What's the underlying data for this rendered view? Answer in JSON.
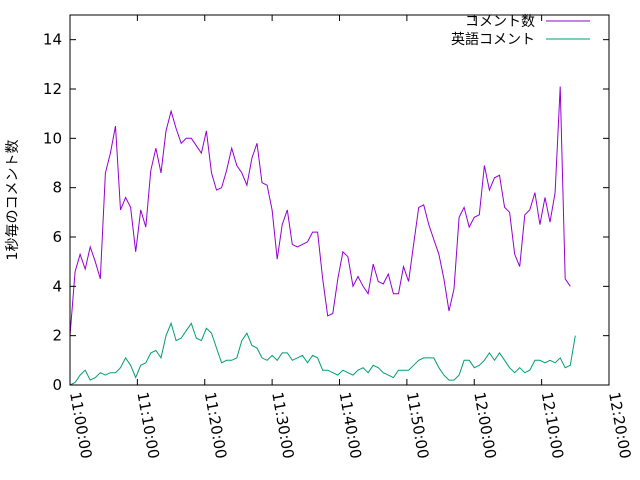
{
  "chart_data": {
    "type": "line",
    "title": "",
    "xlabel": "",
    "ylabel": "1秒毎のコメント数",
    "ylim": [
      0,
      15
    ],
    "yticks": [
      0,
      2,
      4,
      6,
      8,
      10,
      12,
      14
    ],
    "xlim": [
      "11:00:00",
      "12:20:00"
    ],
    "xticks": [
      "11:00:00",
      "11:10:00",
      "11:20:00",
      "11:30:00",
      "11:40:00",
      "11:50:00",
      "12:00:00",
      "12:10:00",
      "12:20:00"
    ],
    "grid": false,
    "legend_position": "top-right",
    "series": [
      {
        "name": "コメント数",
        "color": "#9400d3",
        "points": [
          [
            "11:00:00",
            2.0
          ],
          [
            "11:00:45",
            4.6
          ],
          [
            "11:01:30",
            5.3
          ],
          [
            "11:02:15",
            4.7
          ],
          [
            "11:03:00",
            5.6
          ],
          [
            "11:03:45",
            5.0
          ],
          [
            "11:04:30",
            4.3
          ],
          [
            "11:05:15",
            8.6
          ],
          [
            "11:06:00",
            9.4
          ],
          [
            "11:06:45",
            10.5
          ],
          [
            "11:07:30",
            7.1
          ],
          [
            "11:08:15",
            7.6
          ],
          [
            "11:09:00",
            7.2
          ],
          [
            "11:09:45",
            5.4
          ],
          [
            "11:10:30",
            7.1
          ],
          [
            "11:11:15",
            6.4
          ],
          [
            "11:12:00",
            8.7
          ],
          [
            "11:12:45",
            9.6
          ],
          [
            "11:13:30",
            8.6
          ],
          [
            "11:14:15",
            10.3
          ],
          [
            "11:15:00",
            11.1
          ],
          [
            "11:15:45",
            10.4
          ],
          [
            "11:16:30",
            9.8
          ],
          [
            "11:17:15",
            10.0
          ],
          [
            "11:18:00",
            10.0
          ],
          [
            "11:18:45",
            9.7
          ],
          [
            "11:19:30",
            9.4
          ],
          [
            "11:20:15",
            10.3
          ],
          [
            "11:21:00",
            8.6
          ],
          [
            "11:21:45",
            7.9
          ],
          [
            "11:22:30",
            8.0
          ],
          [
            "11:23:15",
            8.7
          ],
          [
            "11:24:00",
            9.6
          ],
          [
            "11:24:45",
            8.9
          ],
          [
            "11:25:30",
            8.6
          ],
          [
            "11:26:15",
            8.1
          ],
          [
            "11:27:00",
            9.2
          ],
          [
            "11:27:45",
            9.8
          ],
          [
            "11:28:30",
            8.2
          ],
          [
            "11:29:15",
            8.1
          ],
          [
            "11:30:00",
            7.1
          ],
          [
            "11:30:45",
            5.1
          ],
          [
            "11:31:30",
            6.5
          ],
          [
            "11:32:15",
            7.1
          ],
          [
            "11:33:00",
            5.7
          ],
          [
            "11:33:45",
            5.6
          ],
          [
            "11:34:30",
            5.7
          ],
          [
            "11:35:15",
            5.8
          ],
          [
            "11:36:00",
            6.2
          ],
          [
            "11:36:45",
            6.2
          ],
          [
            "11:37:30",
            4.3
          ],
          [
            "11:38:15",
            2.8
          ],
          [
            "11:39:00",
            2.9
          ],
          [
            "11:39:45",
            4.3
          ],
          [
            "11:40:30",
            5.4
          ],
          [
            "11:41:15",
            5.2
          ],
          [
            "11:42:00",
            4.0
          ],
          [
            "11:42:45",
            4.4
          ],
          [
            "11:43:30",
            4.0
          ],
          [
            "11:44:15",
            3.7
          ],
          [
            "11:45:00",
            4.9
          ],
          [
            "11:45:45",
            4.2
          ],
          [
            "11:46:30",
            4.1
          ],
          [
            "11:47:15",
            4.5
          ],
          [
            "11:48:00",
            3.7
          ],
          [
            "11:48:45",
            3.7
          ],
          [
            "11:49:30",
            4.8
          ],
          [
            "11:50:15",
            4.2
          ],
          [
            "11:51:00",
            5.7
          ],
          [
            "11:51:45",
            7.2
          ],
          [
            "11:52:30",
            7.3
          ],
          [
            "11:53:15",
            6.5
          ],
          [
            "11:54:00",
            5.9
          ],
          [
            "11:54:45",
            5.3
          ],
          [
            "11:55:30",
            4.3
          ],
          [
            "11:56:15",
            3.0
          ],
          [
            "11:57:00",
            3.9
          ],
          [
            "11:57:45",
            6.8
          ],
          [
            "11:58:30",
            7.2
          ],
          [
            "11:59:15",
            6.4
          ],
          [
            "12:00:00",
            6.8
          ],
          [
            "12:00:45",
            6.9
          ],
          [
            "12:01:30",
            8.9
          ],
          [
            "12:02:15",
            7.9
          ],
          [
            "12:03:00",
            8.4
          ],
          [
            "12:03:45",
            8.5
          ],
          [
            "12:04:30",
            7.2
          ],
          [
            "12:05:15",
            7.0
          ],
          [
            "12:06:00",
            5.3
          ],
          [
            "12:06:45",
            4.8
          ],
          [
            "12:07:30",
            6.9
          ],
          [
            "12:08:15",
            7.1
          ],
          [
            "12:09:00",
            7.8
          ],
          [
            "12:09:45",
            6.5
          ],
          [
            "12:10:30",
            7.6
          ],
          [
            "12:11:15",
            6.6
          ],
          [
            "12:12:00",
            7.8
          ],
          [
            "12:12:45",
            12.1
          ],
          [
            "12:13:30",
            4.3
          ],
          [
            "12:14:15",
            4.0
          ]
        ]
      },
      {
        "name": "英語コメント",
        "color": "#009e73",
        "points": [
          [
            "11:00:00",
            0.0
          ],
          [
            "11:00:45",
            0.1
          ],
          [
            "11:01:30",
            0.4
          ],
          [
            "11:02:15",
            0.6
          ],
          [
            "11:03:00",
            0.2
          ],
          [
            "11:03:45",
            0.3
          ],
          [
            "11:04:30",
            0.5
          ],
          [
            "11:05:15",
            0.4
          ],
          [
            "11:06:00",
            0.5
          ],
          [
            "11:06:45",
            0.5
          ],
          [
            "11:07:30",
            0.7
          ],
          [
            "11:08:15",
            1.1
          ],
          [
            "11:09:00",
            0.8
          ],
          [
            "11:09:45",
            0.3
          ],
          [
            "11:10:30",
            0.8
          ],
          [
            "11:11:15",
            0.9
          ],
          [
            "11:12:00",
            1.3
          ],
          [
            "11:12:45",
            1.4
          ],
          [
            "11:13:30",
            1.1
          ],
          [
            "11:14:15",
            2.0
          ],
          [
            "11:15:00",
            2.5
          ],
          [
            "11:15:45",
            1.8
          ],
          [
            "11:16:30",
            1.9
          ],
          [
            "11:17:15",
            2.2
          ],
          [
            "11:18:00",
            2.5
          ],
          [
            "11:18:45",
            1.9
          ],
          [
            "11:19:30",
            1.8
          ],
          [
            "11:20:15",
            2.3
          ],
          [
            "11:21:00",
            2.1
          ],
          [
            "11:21:45",
            1.5
          ],
          [
            "11:22:30",
            0.9
          ],
          [
            "11:23:15",
            1.0
          ],
          [
            "11:24:00",
            1.0
          ],
          [
            "11:24:45",
            1.1
          ],
          [
            "11:25:30",
            1.8
          ],
          [
            "11:26:15",
            2.1
          ],
          [
            "11:27:00",
            1.6
          ],
          [
            "11:27:45",
            1.5
          ],
          [
            "11:28:30",
            1.1
          ],
          [
            "11:29:15",
            1.0
          ],
          [
            "11:30:00",
            1.2
          ],
          [
            "11:30:45",
            1.0
          ],
          [
            "11:31:30",
            1.3
          ],
          [
            "11:32:15",
            1.3
          ],
          [
            "11:33:00",
            1.0
          ],
          [
            "11:33:45",
            1.1
          ],
          [
            "11:34:30",
            1.2
          ],
          [
            "11:35:15",
            0.9
          ],
          [
            "11:36:00",
            1.2
          ],
          [
            "11:36:45",
            1.1
          ],
          [
            "11:37:30",
            0.6
          ],
          [
            "11:38:15",
            0.6
          ],
          [
            "11:39:00",
            0.5
          ],
          [
            "11:39:45",
            0.4
          ],
          [
            "11:40:30",
            0.6
          ],
          [
            "11:41:15",
            0.5
          ],
          [
            "11:42:00",
            0.4
          ],
          [
            "11:42:45",
            0.6
          ],
          [
            "11:43:30",
            0.7
          ],
          [
            "11:44:15",
            0.5
          ],
          [
            "11:45:00",
            0.8
          ],
          [
            "11:45:45",
            0.7
          ],
          [
            "11:46:30",
            0.5
          ],
          [
            "11:47:15",
            0.4
          ],
          [
            "11:48:00",
            0.3
          ],
          [
            "11:48:45",
            0.6
          ],
          [
            "11:49:30",
            0.6
          ],
          [
            "11:50:15",
            0.6
          ],
          [
            "11:51:00",
            0.8
          ],
          [
            "11:51:45",
            1.0
          ],
          [
            "11:52:30",
            1.1
          ],
          [
            "11:53:15",
            1.1
          ],
          [
            "11:54:00",
            1.1
          ],
          [
            "11:54:45",
            0.7
          ],
          [
            "11:55:30",
            0.4
          ],
          [
            "11:56:15",
            0.2
          ],
          [
            "11:57:00",
            0.2
          ],
          [
            "11:57:45",
            0.4
          ],
          [
            "11:58:30",
            1.0
          ],
          [
            "11:59:15",
            1.0
          ],
          [
            "12:00:00",
            0.7
          ],
          [
            "12:00:45",
            0.8
          ],
          [
            "12:01:30",
            1.0
          ],
          [
            "12:02:15",
            1.3
          ],
          [
            "12:03:00",
            1.0
          ],
          [
            "12:03:45",
            1.3
          ],
          [
            "12:04:30",
            1.0
          ],
          [
            "12:05:15",
            0.7
          ],
          [
            "12:06:00",
            0.5
          ],
          [
            "12:06:45",
            0.7
          ],
          [
            "12:07:30",
            0.5
          ],
          [
            "12:08:15",
            0.6
          ],
          [
            "12:09:00",
            1.0
          ],
          [
            "12:09:45",
            1.0
          ],
          [
            "12:10:30",
            0.9
          ],
          [
            "12:11:15",
            1.0
          ],
          [
            "12:12:00",
            0.9
          ],
          [
            "12:12:45",
            1.1
          ],
          [
            "12:13:30",
            0.7
          ],
          [
            "12:14:15",
            0.8
          ],
          [
            "12:15:00",
            2.0
          ]
        ]
      }
    ]
  }
}
